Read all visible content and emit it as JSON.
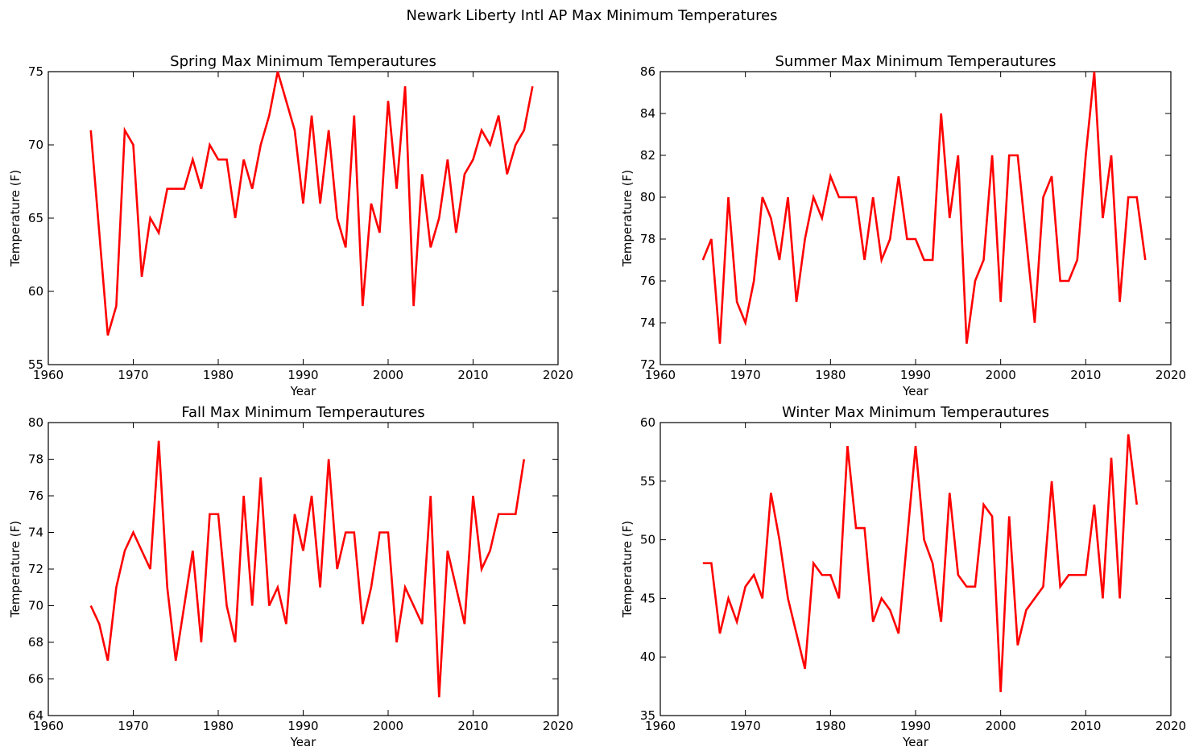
{
  "figure": {
    "title": "Newark Liberty Intl AP Max Minimum Temperatures",
    "line_color": "#ff0000"
  },
  "chart_data": [
    {
      "type": "line",
      "title": "Spring Max Minimum Temperautures",
      "xlabel": "Year",
      "ylabel": "Temperature (F)",
      "xlim": [
        1960,
        2020
      ],
      "ylim": [
        55,
        75
      ],
      "xticks": [
        1960,
        1970,
        1980,
        1990,
        2000,
        2010,
        2020
      ],
      "yticks": [
        55,
        60,
        65,
        70,
        75
      ],
      "grid": false,
      "series": [
        {
          "x": [
            1965,
            1966,
            1967,
            1968,
            1969,
            1970,
            1971,
            1972,
            1973,
            1974,
            1975,
            1976,
            1977,
            1978,
            1979,
            1980,
            1981,
            1982,
            1983,
            1984,
            1985,
            1986,
            1987,
            1988,
            1989,
            1990,
            1991,
            1992,
            1993,
            1994,
            1995,
            1996,
            1997,
            1998,
            1999,
            2000,
            2001,
            2002,
            2003,
            2004,
            2005,
            2006,
            2007,
            2008,
            2009,
            2010,
            2011,
            2012,
            2013,
            2014,
            2015,
            2016,
            2017
          ],
          "values": [
            71,
            64,
            57,
            59,
            71,
            70,
            61,
            65,
            64,
            67,
            67,
            67,
            69,
            67,
            70,
            69,
            69,
            65,
            69,
            67,
            70,
            72,
            75,
            73,
            71,
            66,
            72,
            66,
            71,
            65,
            63,
            72,
            59,
            66,
            64,
            73,
            67,
            74,
            59,
            68,
            63,
            65,
            69,
            64,
            68,
            69,
            71,
            70,
            72,
            68,
            70,
            71,
            74
          ]
        }
      ]
    },
    {
      "type": "line",
      "title": "Summer Max Minimum Temperautures",
      "xlabel": "Year",
      "ylabel": "Temperature (F)",
      "xlim": [
        1960,
        2020
      ],
      "ylim": [
        72,
        86
      ],
      "xticks": [
        1960,
        1970,
        1980,
        1990,
        2000,
        2010,
        2020
      ],
      "yticks": [
        72,
        74,
        76,
        78,
        80,
        82,
        84,
        86
      ],
      "grid": false,
      "series": [
        {
          "x": [
            1965,
            1966,
            1967,
            1968,
            1969,
            1970,
            1971,
            1972,
            1973,
            1974,
            1975,
            1976,
            1977,
            1978,
            1979,
            1980,
            1981,
            1982,
            1983,
            1984,
            1985,
            1986,
            1987,
            1988,
            1989,
            1990,
            1991,
            1992,
            1993,
            1994,
            1995,
            1996,
            1997,
            1998,
            1999,
            2000,
            2001,
            2002,
            2003,
            2004,
            2005,
            2006,
            2007,
            2008,
            2009,
            2010,
            2011,
            2012,
            2013,
            2014,
            2015,
            2016,
            2017
          ],
          "values": [
            77,
            78,
            73,
            80,
            75,
            74,
            76,
            80,
            79,
            77,
            80,
            75,
            78,
            80,
            79,
            81,
            80,
            80,
            80,
            77,
            80,
            77,
            78,
            81,
            78,
            78,
            77,
            77,
            84,
            79,
            82,
            73,
            76,
            77,
            82,
            75,
            82,
            82,
            78,
            74,
            80,
            81,
            76,
            76,
            77,
            82,
            86,
            79,
            82,
            75,
            80,
            80,
            77
          ]
        }
      ]
    },
    {
      "type": "line",
      "title": "Fall Max Minimum Temperautures",
      "xlabel": "Year",
      "ylabel": "Temperature (F)",
      "xlim": [
        1960,
        2020
      ],
      "ylim": [
        64,
        80
      ],
      "xticks": [
        1960,
        1970,
        1980,
        1990,
        2000,
        2010,
        2020
      ],
      "yticks": [
        64,
        66,
        68,
        70,
        72,
        74,
        76,
        78,
        80
      ],
      "grid": false,
      "series": [
        {
          "x": [
            1965,
            1966,
            1967,
            1968,
            1969,
            1970,
            1971,
            1972,
            1973,
            1974,
            1975,
            1976,
            1977,
            1978,
            1979,
            1980,
            1981,
            1982,
            1983,
            1984,
            1985,
            1986,
            1987,
            1988,
            1989,
            1990,
            1991,
            1992,
            1993,
            1994,
            1995,
            1996,
            1997,
            1998,
            1999,
            2000,
            2001,
            2002,
            2003,
            2004,
            2005,
            2006,
            2007,
            2008,
            2009,
            2010,
            2011,
            2012,
            2013,
            2014,
            2015,
            2016
          ],
          "values": [
            70,
            69,
            67,
            71,
            73,
            74,
            73,
            72,
            79,
            71,
            67,
            70,
            73,
            68,
            75,
            75,
            70,
            68,
            76,
            70,
            77,
            70,
            71,
            69,
            75,
            73,
            76,
            71,
            78,
            72,
            74,
            74,
            69,
            71,
            74,
            74,
            68,
            71,
            70,
            69,
            76,
            65,
            73,
            71,
            69,
            76,
            72,
            73,
            75,
            75,
            75,
            78
          ]
        }
      ]
    },
    {
      "type": "line",
      "title": "Winter Max Minimum Temperautures",
      "xlabel": "Year",
      "ylabel": "Temperature (F)",
      "xlim": [
        1960,
        2020
      ],
      "ylim": [
        35,
        60
      ],
      "xticks": [
        1960,
        1970,
        1980,
        1990,
        2000,
        2010,
        2020
      ],
      "yticks": [
        35,
        40,
        45,
        50,
        55,
        60
      ],
      "grid": false,
      "series": [
        {
          "x": [
            1965,
            1966,
            1967,
            1968,
            1969,
            1970,
            1971,
            1972,
            1973,
            1974,
            1975,
            1976,
            1977,
            1978,
            1979,
            1980,
            1981,
            1982,
            1983,
            1984,
            1985,
            1986,
            1987,
            1988,
            1989,
            1990,
            1991,
            1992,
            1993,
            1994,
            1995,
            1996,
            1997,
            1998,
            1999,
            2000,
            2001,
            2002,
            2003,
            2004,
            2005,
            2006,
            2007,
            2008,
            2009,
            2010,
            2011,
            2012,
            2013,
            2014,
            2015,
            2016
          ],
          "values": [
            48,
            48,
            42,
            45,
            43,
            46,
            47,
            45,
            54,
            50,
            45,
            42,
            39,
            48,
            47,
            47,
            45,
            58,
            51,
            51,
            43,
            45,
            44,
            42,
            50,
            58,
            50,
            48,
            43,
            54,
            47,
            46,
            46,
            53,
            52,
            37,
            52,
            41,
            44,
            45,
            46,
            55,
            46,
            47,
            47,
            47,
            53,
            45,
            57,
            45,
            59,
            53
          ]
        }
      ]
    }
  ]
}
